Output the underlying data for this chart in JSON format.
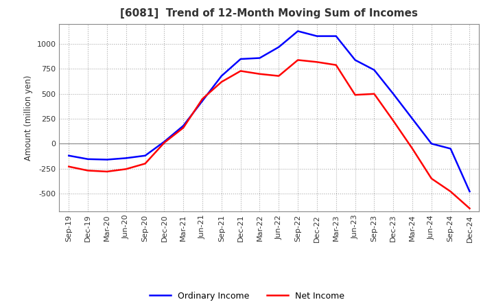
{
  "title": "[6081]  Trend of 12-Month Moving Sum of Incomes",
  "ylabel": "Amount (million yen)",
  "ylim": [
    -680,
    1200
  ],
  "yticks": [
    -500,
    -250,
    0,
    250,
    500,
    750,
    1000
  ],
  "background_color": "#ffffff",
  "grid_color": "#aaaaaa",
  "ordinary_income_color": "#0000ff",
  "net_income_color": "#ff0000",
  "x_labels": [
    "Sep-19",
    "Dec-19",
    "Mar-20",
    "Jun-20",
    "Sep-20",
    "Dec-20",
    "Mar-21",
    "Jun-21",
    "Sep-21",
    "Dec-21",
    "Mar-22",
    "Jun-22",
    "Sep-22",
    "Dec-22",
    "Mar-23",
    "Jun-23",
    "Sep-23",
    "Dec-23",
    "Mar-24",
    "Jun-24",
    "Sep-24",
    "Dec-24"
  ],
  "ordinary_income": [
    -120,
    -155,
    -160,
    -145,
    -120,
    20,
    180,
    430,
    680,
    850,
    860,
    970,
    1130,
    1080,
    1080,
    840,
    740,
    500,
    250,
    0,
    -50,
    -480
  ],
  "net_income": [
    -230,
    -270,
    -280,
    -255,
    -200,
    10,
    160,
    450,
    620,
    730,
    700,
    680,
    840,
    820,
    790,
    490,
    500,
    230,
    -50,
    -350,
    -480,
    -650
  ]
}
